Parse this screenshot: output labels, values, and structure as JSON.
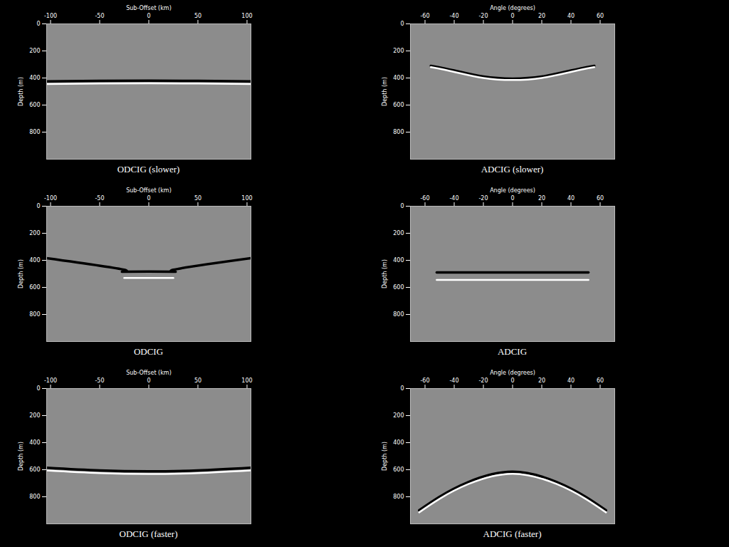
{
  "chart_data": [
    {
      "type": "line",
      "title": "ODCIG (slower)",
      "x_label": "Sub-Offset (km)",
      "y_label": "Depth (m)",
      "xlim": [
        -104,
        104
      ],
      "ylim": [
        0,
        1000
      ],
      "xticks": [
        -100,
        -50,
        0,
        50,
        100
      ],
      "yticks": [
        0,
        200,
        400,
        600,
        800
      ],
      "series": [
        {
          "color": "#000000",
          "x": [
            -104,
            -50,
            0,
            50,
            104
          ],
          "values": [
            425,
            421,
            420,
            421,
            425
          ]
        },
        {
          "color": "#ffffff",
          "x": [
            -104,
            -50,
            0,
            50,
            104
          ],
          "values": [
            445,
            441,
            440,
            441,
            445
          ]
        }
      ]
    },
    {
      "type": "line",
      "title": "ADCIG (slower)",
      "x_label": "Angle (degrees)",
      "y_label": "Depth (m)",
      "xlim": [
        -70,
        70
      ],
      "ylim": [
        0,
        1000
      ],
      "xticks": [
        -60,
        -40,
        -20,
        0,
        20,
        40,
        60
      ],
      "yticks": [
        0,
        200,
        400,
        600,
        800
      ],
      "series": [
        {
          "color": "#000000",
          "x": [
            -56,
            -40,
            -20,
            0,
            20,
            40,
            56
          ],
          "values": [
            310,
            345,
            390,
            405,
            390,
            345,
            310
          ]
        },
        {
          "color": "#ffffff",
          "x": [
            -56,
            -40,
            -20,
            0,
            20,
            40,
            56
          ],
          "values": [
            320,
            355,
            400,
            415,
            400,
            355,
            320
          ]
        }
      ]
    },
    {
      "type": "line",
      "title": "ODCIG",
      "x_label": "Sub-Offset (km)",
      "y_label": "Depth (m)",
      "xlim": [
        -104,
        104
      ],
      "ylim": [
        0,
        1000
      ],
      "xticks": [
        -100,
        -50,
        0,
        50,
        100
      ],
      "yticks": [
        0,
        200,
        400,
        600,
        800
      ],
      "series": [
        {
          "color": "#000000",
          "x": [
            -104,
            -25,
            -25,
            25,
            25,
            104
          ],
          "values": [
            384,
            470,
            484,
            484,
            470,
            384
          ]
        },
        {
          "color": "#ffffff",
          "x": [
            -25,
            25
          ],
          "values": [
            530,
            530
          ]
        }
      ]
    },
    {
      "type": "line",
      "title": "ADCIG",
      "x_label": "Angle (degrees)",
      "y_label": "Depth (m)",
      "xlim": [
        -70,
        70
      ],
      "ylim": [
        0,
        1000
      ],
      "xticks": [
        -60,
        -40,
        -20,
        0,
        20,
        40,
        60
      ],
      "yticks": [
        0,
        200,
        400,
        600,
        800
      ],
      "series": [
        {
          "color": "#000000",
          "x": [
            -52,
            0,
            52
          ],
          "values": [
            490,
            490,
            490
          ]
        },
        {
          "color": "#ffffff",
          "x": [
            -52,
            0,
            52
          ],
          "values": [
            545,
            545,
            545
          ]
        }
      ]
    },
    {
      "type": "line",
      "title": "ODCIG (faster)",
      "x_label": "Sub-Offset (km)",
      "y_label": "Depth (m)",
      "xlim": [
        -104,
        104
      ],
      "ylim": [
        0,
        1000
      ],
      "xticks": [
        -100,
        -50,
        0,
        50,
        100
      ],
      "yticks": [
        0,
        200,
        400,
        600,
        800
      ],
      "series": [
        {
          "color": "#000000",
          "x": [
            -104,
            -50,
            0,
            50,
            104
          ],
          "values": [
            585,
            605,
            612,
            605,
            585
          ]
        },
        {
          "color": "#ffffff",
          "x": [
            -104,
            -50,
            0,
            50,
            104
          ],
          "values": [
            605,
            625,
            632,
            625,
            605
          ]
        }
      ]
    },
    {
      "type": "line",
      "title": "ADCIG (faster)",
      "x_label": "Angle (degrees)",
      "y_label": "Depth (m)",
      "xlim": [
        -70,
        70
      ],
      "ylim": [
        0,
        1000
      ],
      "xticks": [
        -60,
        -40,
        -20,
        0,
        20,
        40,
        60
      ],
      "yticks": [
        0,
        200,
        400,
        600,
        800
      ],
      "series": [
        {
          "color": "#000000",
          "x": [
            -64,
            -50,
            -30,
            0,
            30,
            50,
            64
          ],
          "values": [
            900,
            800,
            690,
            615,
            690,
            800,
            900
          ]
        },
        {
          "color": "#ffffff",
          "x": [
            -64,
            -50,
            -30,
            0,
            30,
            50,
            64
          ],
          "values": [
            915,
            815,
            705,
            630,
            705,
            815,
            915
          ]
        }
      ]
    }
  ]
}
